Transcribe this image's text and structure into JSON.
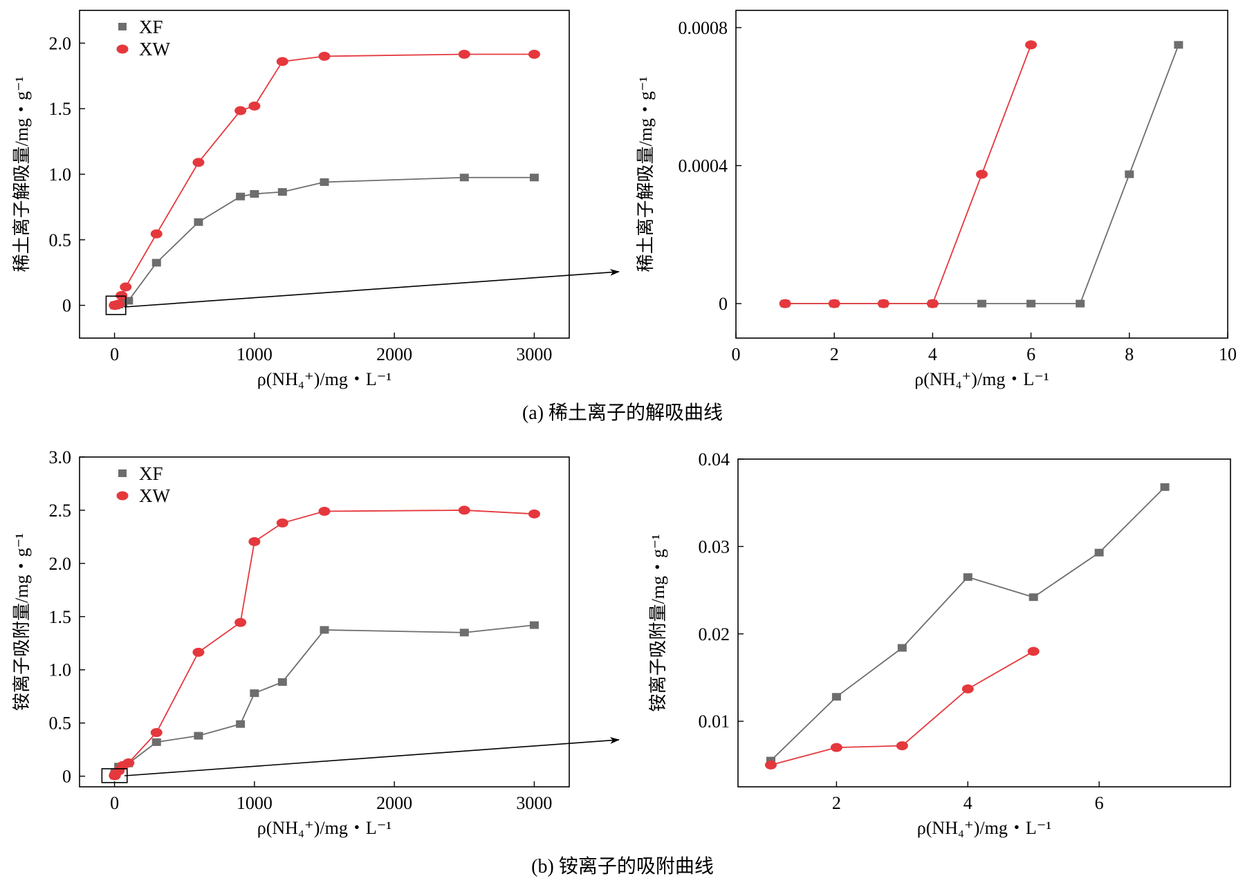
{
  "colors": {
    "xf": "#6d6d6d",
    "xw": "#e5383d",
    "axis": "#000000"
  },
  "captions": {
    "a": "(a) 稀土离子的解吸曲线",
    "b": "(b) 铵离子的吸附曲线"
  },
  "chart_data": [
    {
      "id": "a-main",
      "type": "line",
      "xlim": [
        -250,
        3250
      ],
      "ylim": [
        -0.25,
        2.25
      ],
      "xticks": [
        0,
        1000,
        2000,
        3000
      ],
      "xtick_labels": [
        "0",
        "1000",
        "2000",
        "3000"
      ],
      "yticks": [
        0,
        0.5,
        1.0,
        1.5,
        2.0
      ],
      "ytick_labels": [
        "0",
        "0.5",
        "1.0",
        "1.5",
        "2.0"
      ],
      "ylabel": "稀土离子解吸量/mg・g⁻¹",
      "xlabel": "ρ(NH₄⁺)/mg・L⁻¹",
      "legend": [
        "XF",
        "XW"
      ],
      "zoom_box": [
        -60,
        80,
        -0.07,
        0.07
      ],
      "series": [
        {
          "name": "XF",
          "marker": "square",
          "x": [
            1,
            2,
            3,
            4,
            5,
            6,
            7,
            8,
            9,
            10,
            30,
            60,
            100,
            300,
            600,
            900,
            1000,
            1200,
            1500,
            2500,
            3000
          ],
          "y": [
            0,
            0,
            0,
            0,
            0,
            0,
            0,
            0.0004,
            0.0008,
            0.002,
            0.006,
            0.015,
            0.035,
            0.325,
            0.635,
            0.83,
            0.85,
            0.865,
            0.94,
            0.975,
            0.975
          ]
        },
        {
          "name": "XW",
          "marker": "circle",
          "x": [
            1,
            2,
            3,
            4,
            5,
            6,
            10,
            30,
            50,
            80,
            300,
            600,
            900,
            1000,
            1200,
            1500,
            2500,
            3000
          ],
          "y": [
            0,
            0,
            0,
            0,
            0.0004,
            0.0008,
            0.003,
            0.01,
            0.075,
            0.14,
            0.545,
            1.09,
            1.485,
            1.52,
            1.86,
            1.9,
            1.915,
            1.915
          ]
        }
      ]
    },
    {
      "id": "a-inset",
      "type": "line",
      "xlim": [
        0,
        10
      ],
      "ylim": [
        -0.0001,
        0.00085
      ],
      "xticks": [
        0,
        2,
        4,
        6,
        8,
        10
      ],
      "xtick_labels": [
        "0",
        "2",
        "4",
        "6",
        "8",
        "10"
      ],
      "yticks": [
        0,
        0.0004,
        0.0008
      ],
      "ytick_labels": [
        "0",
        "0.0004",
        "0.0008"
      ],
      "ylabel": "稀土离子解吸量/mg・g⁻¹",
      "xlabel": "ρ(NH₄⁺)/mg・L⁻¹",
      "series": [
        {
          "name": "XF",
          "marker": "square",
          "x": [
            1,
            2,
            3,
            4,
            5,
            6,
            7,
            8,
            9
          ],
          "y": [
            0,
            0,
            0,
            0,
            0,
            0,
            0,
            0.000375,
            0.00075
          ]
        },
        {
          "name": "XW",
          "marker": "circle",
          "x": [
            1,
            2,
            3,
            4,
            5,
            6
          ],
          "y": [
            0,
            0,
            0,
            0,
            0.000375,
            0.00075
          ]
        }
      ]
    },
    {
      "id": "b-main",
      "type": "line",
      "xlim": [
        -250,
        3250
      ],
      "ylim": [
        -0.1,
        3.0
      ],
      "xticks": [
        0,
        1000,
        2000,
        3000
      ],
      "xtick_labels": [
        "0",
        "1000",
        "2000",
        "3000"
      ],
      "yticks": [
        0,
        0.5,
        1.0,
        1.5,
        2.0,
        2.5,
        3.0
      ],
      "ytick_labels": [
        "0",
        "0.5",
        "1.0",
        "1.5",
        "2.0",
        "2.5",
        "3.0"
      ],
      "ylabel": "铵离子吸附量/mg・g⁻¹",
      "xlabel": "ρ(NH₄⁺)/mg・L⁻¹",
      "legend": [
        "XF",
        "XW"
      ],
      "zoom_box": [
        -90,
        90,
        -0.06,
        0.07
      ],
      "series": [
        {
          "name": "XF",
          "marker": "square",
          "x": [
            1,
            2,
            3,
            4,
            5,
            6,
            7,
            30,
            100,
            300,
            600,
            900,
            1000,
            1200,
            1500,
            2500,
            3000
          ],
          "y": [
            0.0055,
            0.0128,
            0.0184,
            0.0265,
            0.0242,
            0.0293,
            0.0368,
            0.09,
            0.12,
            0.32,
            0.38,
            0.49,
            0.78,
            0.885,
            1.375,
            1.35,
            1.42
          ]
        },
        {
          "name": "XW",
          "marker": "circle",
          "x": [
            1,
            2,
            3,
            4,
            5,
            30,
            60,
            100,
            300,
            600,
            900,
            1000,
            1200,
            1500,
            2500,
            3000
          ],
          "y": [
            0.005,
            0.007,
            0.0072,
            0.0137,
            0.018,
            0.05,
            0.1,
            0.125,
            0.41,
            1.165,
            1.445,
            2.205,
            2.38,
            2.49,
            2.5,
            2.465
          ]
        }
      ]
    },
    {
      "id": "b-inset",
      "type": "line",
      "xlim": [
        0.5,
        8.0
      ],
      "ylim": [
        0.0025,
        0.04
      ],
      "xticks": [
        2,
        4,
        6
      ],
      "xtick_labels": [
        "2",
        "4",
        "6"
      ],
      "yticks": [
        0.01,
        0.02,
        0.03,
        0.04
      ],
      "ytick_labels": [
        "0.01",
        "0.02",
        "0.03",
        "0.04"
      ],
      "ylabel": "铵离子吸附量/mg・g⁻¹",
      "xlabel": "ρ(NH₄⁺)/mg・L⁻¹",
      "series": [
        {
          "name": "XF",
          "marker": "square",
          "x": [
            1,
            2,
            3,
            4,
            5,
            6,
            7
          ],
          "y": [
            0.0055,
            0.0128,
            0.0184,
            0.0265,
            0.0242,
            0.0293,
            0.0368
          ]
        },
        {
          "name": "XW",
          "marker": "circle",
          "x": [
            1,
            2,
            3,
            4,
            5
          ],
          "y": [
            0.005,
            0.007,
            0.0072,
            0.0137,
            0.018
          ]
        }
      ]
    }
  ]
}
